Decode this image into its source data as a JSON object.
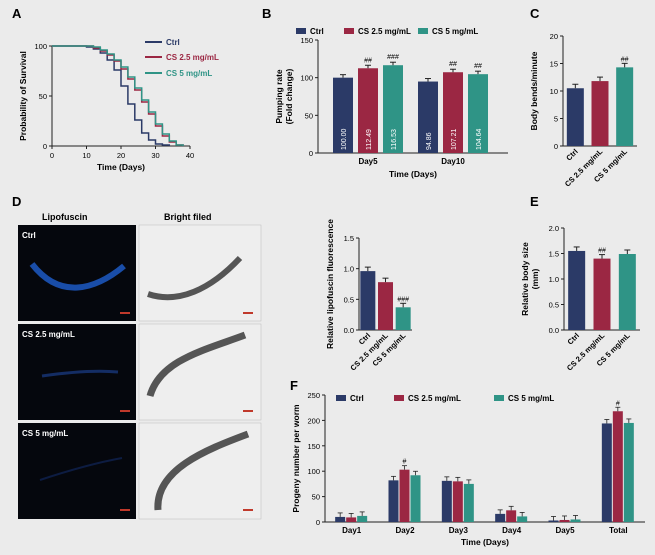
{
  "colors": {
    "ctrl": "#2b3a67",
    "cs25": "#9b2743",
    "cs5": "#2f9486",
    "axis": "#222222",
    "bg": "#ebebeb"
  },
  "legend": {
    "ctrl": "Ctrl",
    "cs25": "CS 2.5 mg/mL",
    "cs5": "CS 5 mg/mL"
  },
  "panels": {
    "A": {
      "letter": "A"
    },
    "B": {
      "letter": "B"
    },
    "C": {
      "letter": "C"
    },
    "D": {
      "letter": "D",
      "col1": "Lipofuscin",
      "col2": "Bright filed",
      "rows": [
        "Ctrl",
        "CS 2.5 mg/mL",
        "CS 5 mg/mL"
      ]
    },
    "E": {
      "letter": "E"
    },
    "F": {
      "letter": "F"
    }
  },
  "chart_data": [
    {
      "id": "A",
      "type": "line",
      "xlabel": "Time (Days)",
      "ylabel": "Probability of Survival",
      "xlim": [
        0,
        40
      ],
      "ylim": [
        0,
        100
      ],
      "xticks": [
        "0",
        "10",
        "20",
        "30",
        "40"
      ],
      "yticks": [
        "0",
        "50",
        "100"
      ],
      "series": [
        {
          "name": "Ctrl",
          "x": [
            0,
            8,
            10,
            12,
            14,
            16,
            18,
            20,
            22,
            24,
            26,
            28,
            30,
            32,
            34
          ],
          "y": [
            100,
            100,
            99,
            97,
            93,
            86,
            76,
            60,
            42,
            26,
            13,
            6,
            2,
            1,
            0
          ]
        },
        {
          "name": "CS 2.5 mg/mL",
          "x": [
            0,
            10,
            12,
            14,
            16,
            18,
            20,
            22,
            24,
            26,
            28,
            30,
            32,
            34,
            36,
            38
          ],
          "y": [
            100,
            100,
            98,
            95,
            91,
            85,
            77,
            67,
            56,
            44,
            32,
            20,
            10,
            4,
            1,
            0
          ]
        },
        {
          "name": "CS 5 mg/mL",
          "x": [
            0,
            10,
            12,
            14,
            16,
            18,
            20,
            22,
            24,
            26,
            28,
            30,
            32,
            34,
            36,
            38
          ],
          "y": [
            100,
            100,
            99,
            96,
            92,
            86,
            79,
            69,
            58,
            46,
            34,
            22,
            12,
            5,
            1,
            0
          ]
        }
      ]
    },
    {
      "id": "B",
      "type": "bar",
      "title": "",
      "xlabel": "Time (Days)",
      "ylabel": "Pumping rate (Fold change)",
      "ylim": [
        0,
        150
      ],
      "yticks": [
        "0",
        "50",
        "100",
        "150"
      ],
      "categories": [
        "Day5",
        "Day10"
      ],
      "series": [
        {
          "name": "Ctrl",
          "values": [
            100.0,
            94.86
          ],
          "labels": [
            "100.00",
            "94.86"
          ],
          "sig": [
            "",
            ""
          ]
        },
        {
          "name": "CS 2.5 mg/mL",
          "values": [
            112.49,
            107.21
          ],
          "labels": [
            "112.49",
            "107.21"
          ],
          "sig": [
            "##",
            "##"
          ]
        },
        {
          "name": "CS 5 mg/mL",
          "values": [
            116.53,
            104.64
          ],
          "labels": [
            "116.53",
            "104.64"
          ],
          "sig": [
            "###",
            "##"
          ]
        }
      ]
    },
    {
      "id": "C",
      "type": "bar",
      "ylabel": "Body bends/minute",
      "ylim": [
        0,
        20
      ],
      "yticks": [
        "0",
        "5",
        "10",
        "15",
        "20"
      ],
      "categories": [
        "Ctrl",
        "CS 2.5 mg/mL",
        "CS 5 mg/mL"
      ],
      "values": [
        10.5,
        11.8,
        14.3
      ],
      "sig": [
        "",
        "",
        "##"
      ]
    },
    {
      "id": "D",
      "type": "bar",
      "ylabel": "Relative lipofuscin fluorescence",
      "ylim": [
        0,
        1.5
      ],
      "yticks": [
        "0.0",
        "0.5",
        "1.0",
        "1.5"
      ],
      "categories": [
        "Ctrl",
        "CS 2.5 mg/mL",
        "CS 5 mg/mL"
      ],
      "values": [
        0.96,
        0.78,
        0.37
      ],
      "sig": [
        "",
        "",
        "###"
      ]
    },
    {
      "id": "E",
      "type": "bar",
      "ylabel": "Relative body size (mm)",
      "ylim": [
        0,
        2.0
      ],
      "yticks": [
        "0.0",
        "0.5",
        "1.0",
        "1.5",
        "2.0"
      ],
      "categories": [
        "Ctrl",
        "CS 2.5 mg/mL",
        "CS 5 mg/mL"
      ],
      "values": [
        1.55,
        1.4,
        1.49
      ],
      "sig": [
        "",
        "##",
        ""
      ]
    },
    {
      "id": "F",
      "type": "bar",
      "xlabel": "Time (Days)",
      "ylabel": "Progeny number per worm",
      "ylim": [
        0,
        250
      ],
      "yticks": [
        "0",
        "50",
        "100",
        "150",
        "200",
        "250"
      ],
      "categories": [
        "Day1",
        "Day2",
        "Day3",
        "Day4",
        "Day5",
        "Total"
      ],
      "series": [
        {
          "name": "Ctrl",
          "values": [
            10,
            82,
            81,
            16,
            3,
            194
          ],
          "sig": [
            "",
            "",
            "",
            "",
            "",
            ""
          ]
        },
        {
          "name": "CS 2.5 mg/mL",
          "values": [
            9,
            103,
            80,
            23,
            4,
            218
          ],
          "sig": [
            "",
            "#",
            "",
            "",
            "",
            "#"
          ]
        },
        {
          "name": "CS 5 mg/mL",
          "values": [
            12,
            92,
            75,
            11,
            5,
            195
          ],
          "sig": [
            "",
            "",
            "",
            "",
            "",
            ""
          ]
        }
      ]
    }
  ]
}
